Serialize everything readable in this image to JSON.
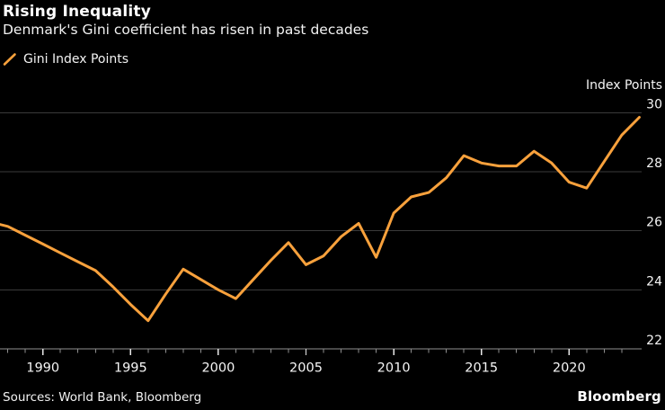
{
  "header": {
    "title": "Rising Inequality",
    "subtitle": "Denmark's Gini coefficient has risen in past decades"
  },
  "legend": {
    "label": "Gini Index Points"
  },
  "y_axis": {
    "title": "Index Points"
  },
  "footer": {
    "sources": "Sources: World Bank, Bloomberg",
    "brand": "Bloomberg"
  },
  "colors": {
    "background": "#000000",
    "text": "#f5f5f5",
    "line": "#f8a13c",
    "gridline": "#3a3a3a",
    "axis": "#8f8f8f",
    "major_tick": "#e8e8e8"
  },
  "chart_data": {
    "type": "line",
    "title": "Rising Inequality",
    "subtitle": "Denmark's Gini coefficient has risen in past decades",
    "ylabel": "Index Points",
    "xlabel": "",
    "grid": "horizontal",
    "legend_position": "top-left",
    "line_color": "#f8a13c",
    "ylim": [
      22,
      30
    ],
    "yticks": [
      30,
      28,
      26,
      24,
      22
    ],
    "xticks_major": [
      1990,
      1995,
      2000,
      2005,
      2010,
      2015,
      2020
    ],
    "xticks_minor": {
      "start": 1988,
      "end": 2023,
      "step": 1
    },
    "series": [
      {
        "name": "Gini Index Points",
        "x": [
          1987,
          1988,
          1989,
          1990,
          1991,
          1992,
          1993,
          1994,
          1995,
          1996,
          1997,
          1998,
          1999,
          2000,
          2001,
          2002,
          2003,
          2004,
          2005,
          2006,
          2007,
          2008,
          2009,
          2010,
          2011,
          2012,
          2013,
          2014,
          2015,
          2016,
          2017,
          2018,
          2019,
          2020,
          2021,
          2022,
          2023,
          2024
        ],
        "y": [
          26.3,
          26.15,
          25.85,
          25.55,
          25.25,
          24.95,
          24.65,
          24.1,
          23.5,
          22.95,
          23.85,
          24.7,
          24.35,
          24.0,
          23.7,
          24.35,
          25.0,
          25.6,
          24.85,
          25.15,
          25.8,
          26.25,
          25.1,
          26.6,
          27.15,
          27.3,
          27.8,
          28.55,
          28.3,
          28.2,
          28.2,
          28.7,
          28.3,
          27.65,
          27.45,
          28.35,
          29.25,
          29.85
        ]
      }
    ]
  }
}
